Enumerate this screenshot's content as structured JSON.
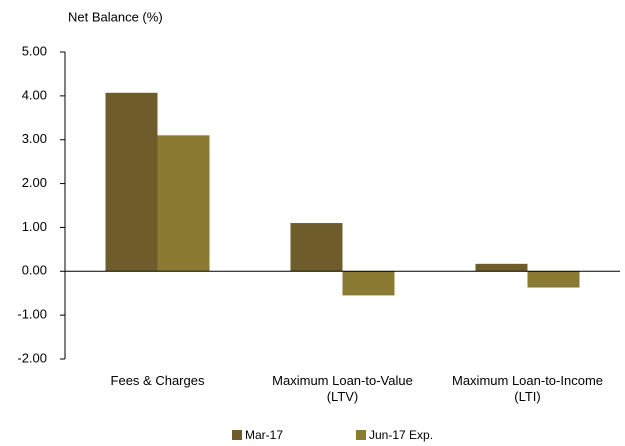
{
  "chart_data": {
    "type": "bar",
    "y_label": "Net Balance (%)",
    "categories": [
      "Fees & Charges",
      "Maximum Loan-to-Value (LTV)",
      "Maximum Loan-to-Income (LTI)"
    ],
    "series": [
      {
        "name": "Mar-17",
        "color": "#6e5c2b",
        "values": [
          4.07,
          1.1,
          0.17
        ]
      },
      {
        "name": "Jun-17 Exp.",
        "color": "#8b7a31",
        "values": [
          3.1,
          -0.55,
          -0.37
        ]
      }
    ],
    "ylim": [
      -2,
      5
    ],
    "yticks": [
      {
        "value": -2,
        "label": "-2.00"
      },
      {
        "value": -1,
        "label": "-1.00"
      },
      {
        "value": 0,
        "label": "0.00"
      },
      {
        "value": 1,
        "label": "1.00"
      },
      {
        "value": 2,
        "label": "2.00"
      },
      {
        "value": 3,
        "label": "3.00"
      },
      {
        "value": 4,
        "label": "4.00"
      },
      {
        "value": 5,
        "label": "5.00"
      }
    ]
  }
}
